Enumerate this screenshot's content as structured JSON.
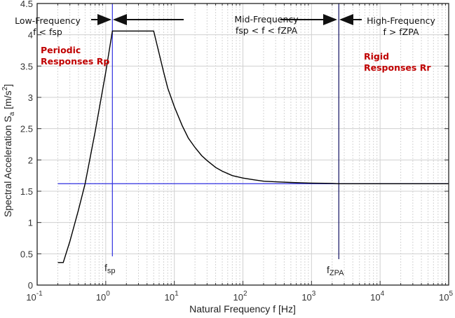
{
  "chart_data": {
    "type": "line",
    "xlabel": "Natural Frequency f [Hz]",
    "ylabel": "Spectral Acceleration S",
    "ylabel_sub": "a",
    "ylabel_unit": " [m/s",
    "ylabel_unit_sup": "2",
    "ylabel_unit_end": "]",
    "xscale": "log",
    "xlim": [
      0.1,
      100000
    ],
    "ylim": [
      0,
      4.5
    ],
    "grid": true,
    "x_ticks": [
      {
        "base": "10",
        "exp": "-1"
      },
      {
        "base": "10",
        "exp": "0"
      },
      {
        "base": "10",
        "exp": "1"
      },
      {
        "base": "10",
        "exp": "2"
      },
      {
        "base": "10",
        "exp": "3"
      },
      {
        "base": "10",
        "exp": "4"
      },
      {
        "base": "10",
        "exp": "5"
      }
    ],
    "y_ticks": [
      "0",
      "0.5",
      "1",
      "1.5",
      "2",
      "2.5",
      "3",
      "3.5",
      "4",
      "4.5"
    ],
    "series": [
      {
        "color": "#000000",
        "x": [
          0.2,
          0.24,
          0.3,
          0.4,
          0.5,
          0.7,
          1.0,
          1.25,
          5.0,
          6,
          7,
          8,
          10,
          13,
          16,
          20,
          25,
          30,
          40,
          50,
          70,
          100,
          150,
          200,
          300,
          500,
          700,
          1000,
          2000,
          2500,
          5000,
          100000
        ],
        "y": [
          0.36,
          0.36,
          0.7,
          1.2,
          1.62,
          2.45,
          3.4,
          4.06,
          4.06,
          3.7,
          3.4,
          3.15,
          2.85,
          2.55,
          2.35,
          2.2,
          2.07,
          1.99,
          1.88,
          1.82,
          1.75,
          1.71,
          1.68,
          1.66,
          1.65,
          1.64,
          1.635,
          1.63,
          1.625,
          1.62,
          1.62,
          1.62
        ]
      }
    ],
    "reference_lines": {
      "horizontal_y": 1.62,
      "fsp_x": 1.25,
      "fzpa_x": 2500,
      "color": "#3030e0"
    },
    "annotations": {
      "low_title": "Low-Frequency",
      "low_cond": "f < fsp",
      "mid_title": "Mid-Frequency",
      "mid_cond": "fsp < f < fZPA",
      "high_title": "High-Frequency",
      "high_cond": "f > fZPA",
      "periodic_1": "Periodic",
      "periodic_2": "Responses Rp",
      "rigid_1": "Rigid",
      "rigid_2": "Responses Rr",
      "fsp_label": "f",
      "fsp_sub": "sp",
      "fzpa_label": "f",
      "fzpa_sub": "ZPA",
      "annotation_color": "#c00000"
    }
  }
}
